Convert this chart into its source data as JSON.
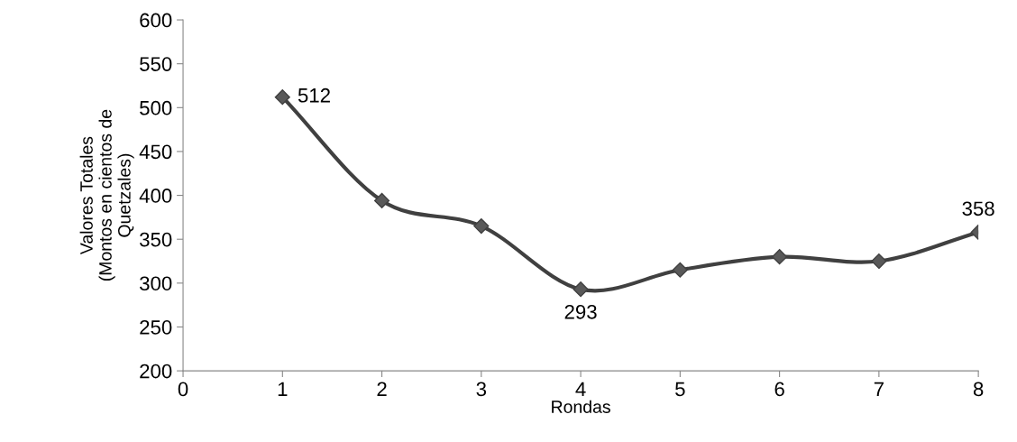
{
  "chart_data": {
    "type": "line",
    "xlabel": "Rondas",
    "ylabel": "Valores Totales\n(Montos en cientos de\nQuetzales)",
    "x": [
      1,
      2,
      3,
      4,
      5,
      6,
      7,
      8
    ],
    "series": [
      {
        "color": "#404040",
        "values": [
          512,
          394,
          365,
          293,
          315,
          330,
          325,
          358
        ],
        "value_labels": [
          "512",
          null,
          null,
          "293",
          null,
          null,
          null,
          "358"
        ]
      }
    ],
    "marker": "diamond",
    "line_style": "solid",
    "grid": false,
    "legend": false,
    "xlim": [
      0,
      8
    ],
    "xticks": [
      0,
      1,
      2,
      3,
      4,
      5,
      6,
      7,
      8
    ],
    "ylim": [
      200,
      600
    ],
    "yticks": [
      200,
      250,
      300,
      350,
      400,
      450,
      500,
      550,
      600
    ]
  }
}
